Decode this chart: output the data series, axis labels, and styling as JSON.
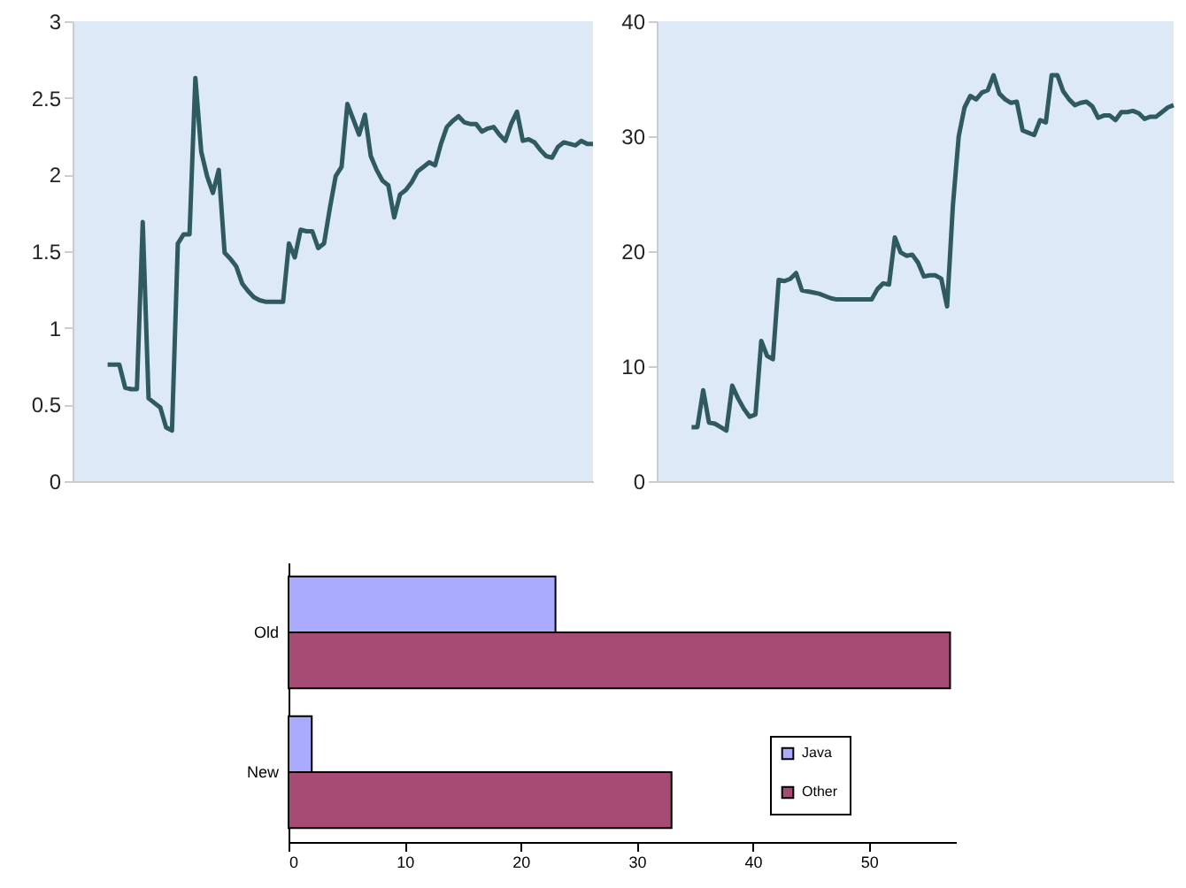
{
  "chart_data": [
    {
      "type": "line",
      "categories": [
        null,
        null,
        null,
        null,
        null,
        null,
        null,
        null,
        null,
        null,
        null,
        null,
        null,
        null,
        null,
        null,
        null,
        null,
        null,
        null,
        null,
        null,
        null,
        null,
        null,
        null,
        null,
        null,
        null,
        null,
        null,
        null,
        null,
        null,
        null,
        null,
        null,
        null,
        null,
        null,
        null,
        null,
        null,
        null,
        null,
        null,
        null,
        null,
        null,
        null,
        null,
        null,
        null,
        null,
        null,
        null,
        null,
        null,
        null,
        null,
        null,
        null,
        null,
        null,
        null,
        null,
        null,
        null,
        null,
        null,
        null,
        null,
        null,
        null,
        null,
        null,
        null,
        null,
        null,
        null,
        null,
        null,
        null,
        null,
        null,
        null,
        null,
        null,
        null,
        null
      ],
      "ylim": [
        0,
        3
      ],
      "yticks": [
        0,
        0.5,
        1,
        1.5,
        2,
        2.5,
        3
      ],
      "tick_labels": "y",
      "grid": false,
      "series": [
        {
          "color": "#2f5a60",
          "values": [
            null,
            null,
            null,
            null,
            null,
            null,
            0.76,
            0.76,
            0.76,
            0.61,
            0.6,
            0.6,
            1.69,
            0.54,
            0.51,
            0.48,
            0.35,
            0.33,
            1.55,
            1.61,
            1.61,
            2.63,
            2.15,
            1.99,
            1.88,
            2.03,
            1.49,
            1.45,
            1.4,
            1.29,
            1.24,
            1.2,
            1.18,
            1.17,
            1.17,
            1.17,
            1.17,
            1.55,
            1.46,
            1.64,
            1.63,
            1.63,
            1.52,
            1.55,
            1.78,
            1.99,
            2.05,
            2.46,
            2.36,
            2.26,
            2.39,
            2.12,
            2.03,
            1.96,
            1.93,
            1.72,
            1.87,
            1.9,
            1.95,
            2.02,
            2.05,
            2.08,
            2.06,
            2.2,
            2.31,
            2.35,
            2.38,
            2.34,
            2.33,
            2.33,
            2.28,
            2.3,
            2.31,
            2.26,
            2.22,
            2.33,
            2.41,
            2.22,
            2.23,
            2.21,
            2.16,
            2.12,
            2.11,
            2.18,
            2.21,
            2.2,
            2.19,
            2.22,
            2.2,
            2.2
          ]
        }
      ]
    },
    {
      "type": "line",
      "categories": [
        null,
        null,
        null,
        null,
        null,
        null,
        null,
        null,
        null,
        null,
        null,
        null,
        null,
        null,
        null,
        null,
        null,
        null,
        null,
        null,
        null,
        null,
        null,
        null,
        null,
        null,
        null,
        null,
        null,
        null,
        null,
        null,
        null,
        null,
        null,
        null,
        null,
        null,
        null,
        null,
        null,
        null,
        null,
        null,
        null,
        null,
        null,
        null,
        null,
        null,
        null,
        null,
        null,
        null,
        null,
        null,
        null,
        null,
        null,
        null,
        null,
        null,
        null,
        null,
        null,
        null,
        null,
        null,
        null,
        null,
        null,
        null,
        null,
        null,
        null,
        null,
        null,
        null,
        null,
        null,
        null,
        null,
        null,
        null,
        null,
        null,
        null,
        null,
        null,
        null
      ],
      "ylim": [
        0,
        40
      ],
      "yticks": [
        0,
        10,
        20,
        30,
        40
      ],
      "tick_labels": "y",
      "grid": false,
      "series": [
        {
          "color": "#2f5a60",
          "values": [
            null,
            null,
            null,
            null,
            null,
            null,
            4.7,
            4.7,
            7.9,
            5.1,
            5.0,
            4.7,
            4.4,
            8.3,
            7.2,
            6.3,
            5.6,
            5.8,
            12.2,
            10.9,
            10.6,
            17.5,
            17.4,
            17.6,
            18.1,
            16.6,
            16.5,
            16.4,
            16.3,
            16.1,
            15.9,
            15.8,
            15.8,
            15.8,
            15.8,
            15.8,
            15.8,
            15.8,
            16.7,
            17.2,
            17.1,
            21.2,
            19.9,
            19.6,
            19.7,
            19.0,
            17.8,
            17.9,
            17.9,
            17.6,
            15.2,
            24.0,
            30.0,
            32.5,
            33.5,
            33.2,
            33.8,
            34.0,
            35.3,
            33.7,
            33.2,
            32.9,
            33.0,
            30.5,
            30.3,
            30.1,
            31.4,
            31.2,
            35.3,
            35.3,
            33.9,
            33.2,
            32.7,
            32.9,
            33.0,
            32.6,
            31.6,
            31.8,
            31.8,
            31.4,
            32.1,
            32.1,
            32.2,
            32.0,
            31.5,
            31.7,
            31.7,
            32.1,
            32.5,
            32.7
          ]
        }
      ]
    },
    {
      "type": "bar",
      "orientation": "horizontal",
      "categories": [
        "Old",
        "New"
      ],
      "xlim": [
        0,
        57.5
      ],
      "xticks": [
        0,
        10,
        20,
        30,
        40,
        50
      ],
      "grid": false,
      "legend": "bottom right",
      "series": [
        {
          "name": "Java",
          "color": "#aaaaff",
          "values": [
            23,
            2
          ]
        },
        {
          "name": "Other",
          "color": "#a64b73",
          "values": [
            57,
            33
          ]
        }
      ]
    }
  ]
}
